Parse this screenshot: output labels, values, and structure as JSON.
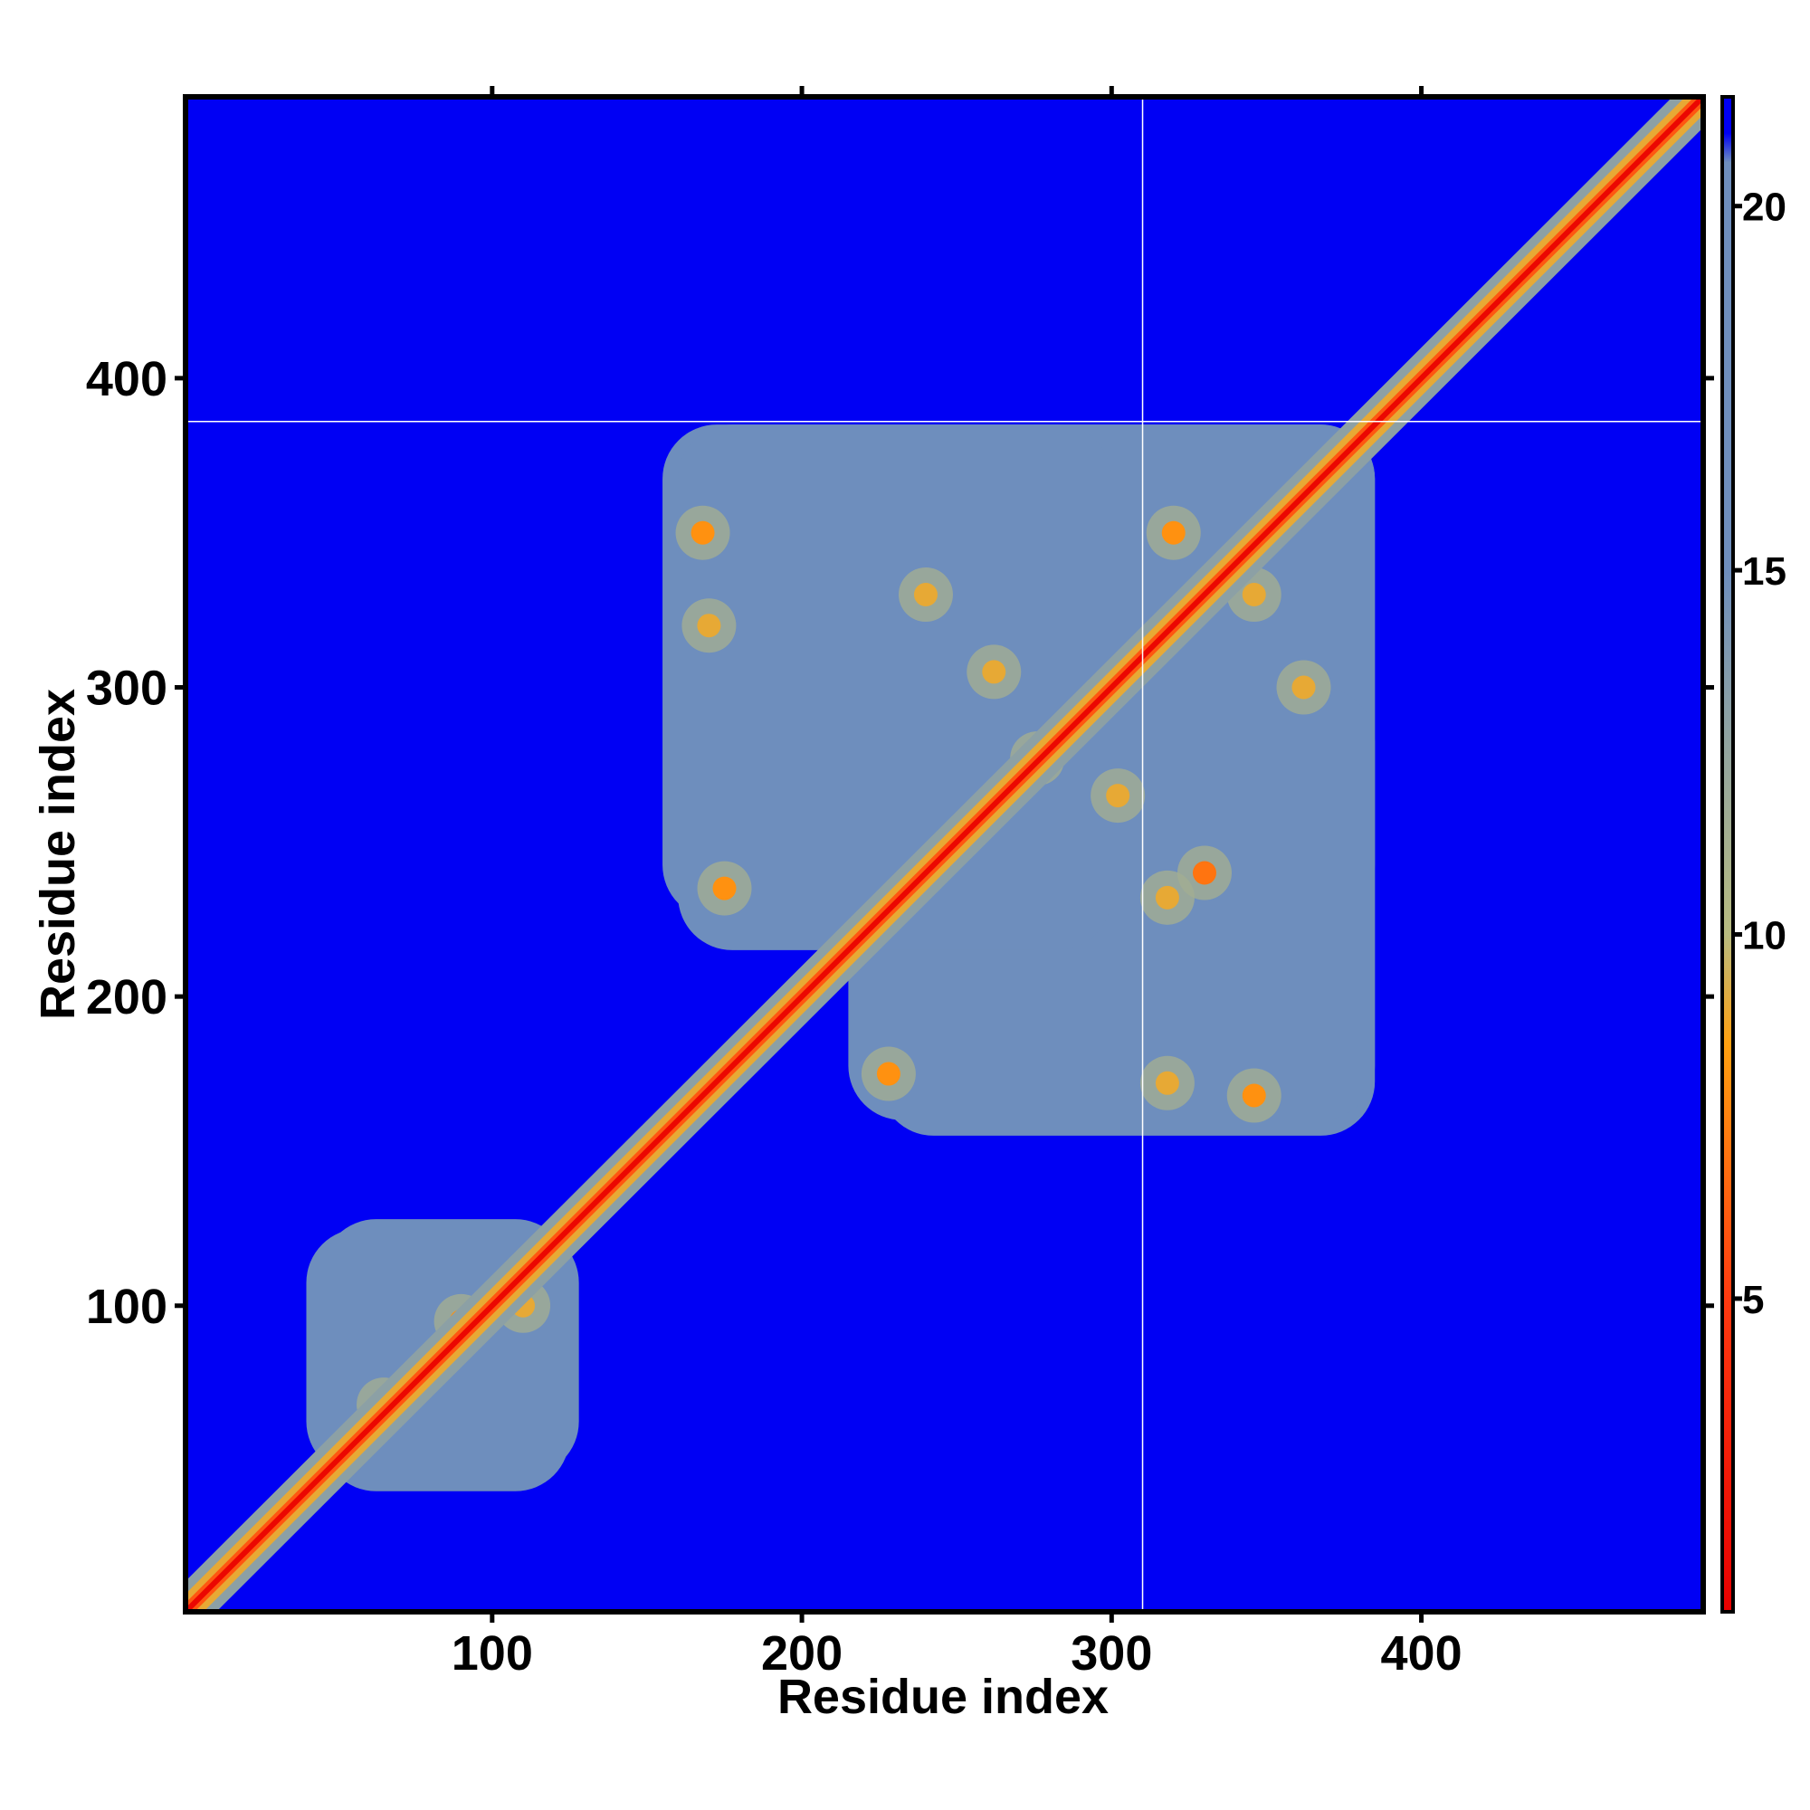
{
  "chart_data": {
    "type": "heatmap",
    "title": "",
    "xlabel": "Residue index",
    "ylabel": "Residue index",
    "xlim": [
      1,
      491
    ],
    "ylim": [
      1,
      491
    ],
    "x_ticks": [
      100,
      200,
      300,
      400
    ],
    "y_ticks": [
      100,
      200,
      300,
      400
    ],
    "colorbar": {
      "range": [
        0.7,
        21.5
      ],
      "ticks": [
        5,
        10,
        15,
        20
      ],
      "stops": [
        {
          "value": 0.7,
          "color": "#e80000"
        },
        {
          "value": 5.0,
          "color": "#ff3a10"
        },
        {
          "value": 8.5,
          "color": "#ffa010"
        },
        {
          "value": 10.0,
          "color": "#b8bb80"
        },
        {
          "value": 15.0,
          "color": "#6e8ebd"
        },
        {
          "value": 20.6,
          "color": "#6e8ebd"
        },
        {
          "value": 21.0,
          "color": "#0000f4"
        },
        {
          "value": 21.5,
          "color": "#0000f4"
        }
      ]
    },
    "background_value": 21.5,
    "diagonal_band": {
      "start": 1,
      "end": 491
    },
    "domain_blocks": [
      {
        "x_range": [
          40,
          128
        ],
        "y_range": [
          45,
          125
        ],
        "value": 16
      },
      {
        "x_range": [
          155,
          385
        ],
        "y_range": [
          225,
          385
        ],
        "value": 16
      },
      {
        "x_range": [
          215,
          385
        ],
        "y_range": [
          160,
          300
        ],
        "value": 16
      }
    ],
    "contact_spots": [
      {
        "x": 65,
        "y": 68,
        "value": 5
      },
      {
        "x": 90,
        "y": 95,
        "value": 8
      },
      {
        "x": 110,
        "y": 100,
        "value": 9
      },
      {
        "x": 170,
        "y": 320,
        "value": 9
      },
      {
        "x": 168,
        "y": 350,
        "value": 8
      },
      {
        "x": 175,
        "y": 235,
        "value": 8
      },
      {
        "x": 228,
        "y": 175,
        "value": 8
      },
      {
        "x": 240,
        "y": 330,
        "value": 9
      },
      {
        "x": 262,
        "y": 305,
        "value": 9
      },
      {
        "x": 276,
        "y": 277,
        "value": 5
      },
      {
        "x": 302,
        "y": 265,
        "value": 9
      },
      {
        "x": 318,
        "y": 172,
        "value": 9
      },
      {
        "x": 318,
        "y": 232,
        "value": 9
      },
      {
        "x": 330,
        "y": 240,
        "value": 7
      },
      {
        "x": 320,
        "y": 350,
        "value": 8
      },
      {
        "x": 346,
        "y": 168,
        "value": 8
      },
      {
        "x": 346,
        "y": 330,
        "value": 9
      },
      {
        "x": 362,
        "y": 300,
        "value": 9
      }
    ],
    "reference_lines": {
      "x": 310,
      "y": 386
    },
    "grid": false,
    "legend": "colorbar right"
  }
}
